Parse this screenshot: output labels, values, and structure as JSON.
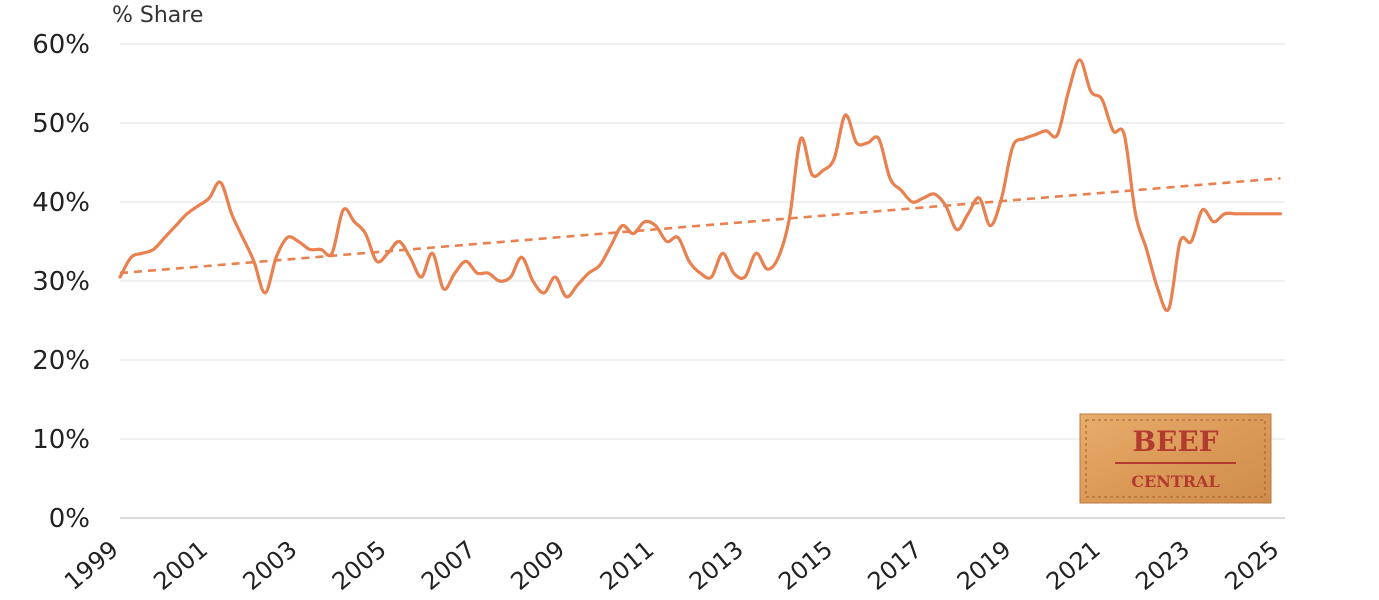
{
  "chart_data": {
    "type": "line",
    "title": "",
    "xlabel": "",
    "ylabel": "% Share",
    "xlim": [
      1999,
      2025.1
    ],
    "ylim": [
      0,
      60
    ],
    "yticks": [
      0,
      10,
      20,
      30,
      40,
      50,
      60
    ],
    "ytick_labels": [
      "0%",
      "10%",
      "20%",
      "30%",
      "40%",
      "50%",
      "60%"
    ],
    "xticks": [
      1999,
      2001,
      2003,
      2005,
      2007,
      2009,
      2011,
      2013,
      2015,
      2017,
      2019,
      2021,
      2023,
      2025
    ],
    "xtick_labels": [
      "1999",
      "2001",
      "2003",
      "2005",
      "2007",
      "2009",
      "2011",
      "2013",
      "2015",
      "2017",
      "2019",
      "2021",
      "2023",
      "2025"
    ],
    "grid": true,
    "legend": "none",
    "series": [
      {
        "color": "#e8804f",
        "style": "solid",
        "x": [
          1999.0,
          1999.25,
          1999.5,
          1999.75,
          2000.0,
          2000.25,
          2000.5,
          2000.75,
          2001.0,
          2001.25,
          2001.5,
          2001.75,
          2002.0,
          2002.25,
          2002.5,
          2002.75,
          2003.0,
          2003.25,
          2003.5,
          2003.75,
          2004.0,
          2004.25,
          2004.5,
          2004.75,
          2005.0,
          2005.25,
          2005.5,
          2005.75,
          2006.0,
          2006.25,
          2006.5,
          2006.75,
          2007.0,
          2007.25,
          2007.5,
          2007.75,
          2008.0,
          2008.25,
          2008.5,
          2008.75,
          2009.0,
          2009.25,
          2009.5,
          2009.75,
          2010.0,
          2010.25,
          2010.5,
          2010.75,
          2011.0,
          2011.25,
          2011.5,
          2011.75,
          2012.0,
          2012.25,
          2012.5,
          2012.75,
          2013.0,
          2013.25,
          2013.5,
          2013.75,
          2014.0,
          2014.25,
          2014.5,
          2014.75,
          2015.0,
          2015.25,
          2015.5,
          2015.75,
          2016.0,
          2016.25,
          2016.5,
          2016.75,
          2017.0,
          2017.25,
          2017.5,
          2017.75,
          2018.0,
          2018.25,
          2018.5,
          2018.75,
          2019.0,
          2019.25,
          2019.5,
          2019.75,
          2020.0,
          2020.25,
          2020.5,
          2020.75,
          2021.0,
          2021.25,
          2021.5,
          2021.75,
          2022.0,
          2022.25,
          2022.5,
          2022.75,
          2023.0,
          2023.25,
          2023.5,
          2023.75,
          2024.0,
          2024.25,
          2024.5,
          2024.75,
          2025.0
        ],
        "values": [
          30.5,
          33.0,
          33.5,
          34.0,
          35.5,
          37.0,
          38.5,
          39.5,
          40.5,
          42.5,
          38.5,
          35.5,
          32.5,
          28.5,
          33.0,
          35.5,
          35.0,
          34.0,
          34.0,
          33.5,
          39.0,
          37.5,
          36.0,
          32.5,
          33.5,
          35.0,
          33.0,
          30.5,
          33.5,
          29.0,
          31.0,
          32.5,
          31.0,
          31.0,
          30.0,
          30.5,
          33.0,
          30.0,
          28.5,
          30.5,
          28.0,
          29.5,
          31.0,
          32.0,
          34.5,
          37.0,
          36.0,
          37.5,
          37.0,
          35.0,
          35.5,
          32.5,
          31.0,
          30.5,
          33.5,
          31.0,
          30.5,
          33.5,
          31.5,
          33.0,
          38.0,
          48.0,
          43.5,
          44.0,
          45.5,
          51.0,
          47.5,
          47.5,
          48.0,
          43.0,
          41.5,
          40.0,
          40.5,
          41.0,
          39.5,
          36.5,
          38.5,
          40.5,
          37.0,
          40.5,
          47.0,
          48.0,
          48.5,
          49.0,
          48.5,
          54.0,
          58.0,
          54.0,
          53.0,
          49.0,
          48.5,
          38.5,
          34.0,
          29.0,
          26.5,
          35.0,
          35.0,
          39.0,
          37.5,
          38.5,
          38.5,
          38.5,
          38.5,
          38.5,
          38.5
        ]
      },
      {
        "color": "#e8804f",
        "style": "dashed",
        "x": [
          1999,
          2025
        ],
        "values": [
          31.0,
          43.0
        ]
      }
    ]
  },
  "logo": {
    "line1": "BEEF",
    "line2": "CENTRAL",
    "color": "#b23a2e",
    "bg": "#e0a161"
  },
  "colors": {
    "series": "#e8804f",
    "grid": "#e6e6e6",
    "text": "#222222"
  }
}
